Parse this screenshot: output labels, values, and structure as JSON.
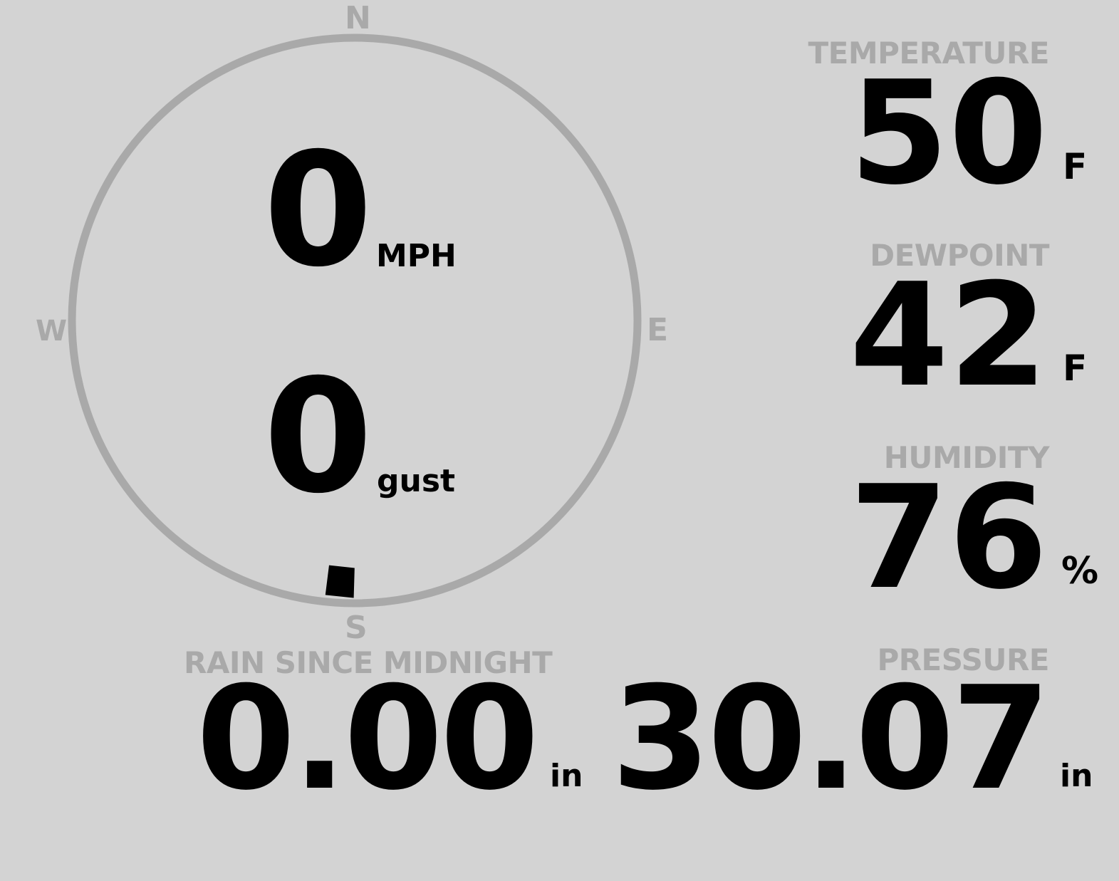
{
  "wind": {
    "compass": {
      "n": "N",
      "e": "E",
      "s": "S",
      "w": "W"
    },
    "speed": "0",
    "speed_unit": "MPH",
    "gust": "0",
    "gust_unit": "gust",
    "direction_deg": 183,
    "ring_color": "#a9a9a9"
  },
  "temperature": {
    "label": "TEMPERATURE",
    "value": "50",
    "unit": "F"
  },
  "dewpoint": {
    "label": "DEWPOINT",
    "value": "42",
    "unit": "F"
  },
  "humidity": {
    "label": "HUMIDITY",
    "value": "76",
    "unit": "%"
  },
  "rain": {
    "label": "RAIN SINCE MIDNIGHT",
    "value": "0.00",
    "unit": "in"
  },
  "pressure": {
    "label": "PRESSURE",
    "value": "30.07",
    "unit": "in"
  },
  "colors": {
    "background": "#d3d3d3",
    "label": "#a9a9a9",
    "value": "#000000"
  }
}
